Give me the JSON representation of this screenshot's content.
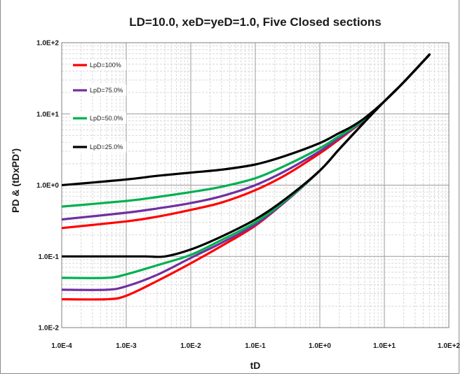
{
  "chart_data": {
    "type": "line",
    "title": "LD=10.0, xeD=yeD=1.0, Five Closed sections",
    "xlabel": "tD",
    "ylabel": "PD & (tDxPD')",
    "xscale": "log",
    "yscale": "log",
    "xlim": [
      0.0001,
      100
    ],
    "ylim": [
      0.01,
      100
    ],
    "x_ticks": [
      "1.0E-4",
      "1.0E-3",
      "1.0E-2",
      "1.0E-1",
      "1.0E+0",
      "1.0E+1",
      "1.0E+2"
    ],
    "y_ticks": [
      "1.0E-2",
      "1.0E-1",
      "1.0E+0",
      "1.0E+1",
      "1.0E+2"
    ],
    "grid": true,
    "legend_position": "top-left",
    "series": [
      {
        "name": "LpD=100%",
        "color": "#ff0000",
        "pressure": {
          "x": [
            0.0001,
            0.001,
            0.003,
            0.01,
            0.03,
            0.1,
            0.3,
            1,
            2,
            3,
            5,
            10,
            20,
            50
          ],
          "y": [
            0.25,
            0.31,
            0.36,
            0.45,
            0.57,
            0.85,
            1.4,
            2.8,
            4.4,
            5.8,
            8.3,
            15,
            28,
            68
          ]
        },
        "derivative": {
          "x": [
            0.0001,
            0.0005,
            0.001,
            0.003,
            0.01,
            0.03,
            0.1,
            0.3,
            1,
            2,
            5,
            10,
            20,
            50
          ],
          "y": [
            0.025,
            0.025,
            0.028,
            0.045,
            0.08,
            0.14,
            0.27,
            0.6,
            1.6,
            3.2,
            7.8,
            15,
            28,
            68
          ]
        }
      },
      {
        "name": "LpD=75.0%",
        "color": "#7030a0",
        "pressure": {
          "x": [
            0.0001,
            0.001,
            0.003,
            0.01,
            0.03,
            0.1,
            0.3,
            1,
            2,
            3,
            5,
            10,
            20,
            50
          ],
          "y": [
            0.33,
            0.41,
            0.47,
            0.56,
            0.7,
            1,
            1.6,
            3,
            4.6,
            5.9,
            8.4,
            15,
            28,
            68
          ]
        },
        "derivative": {
          "x": [
            0.0001,
            0.0005,
            0.001,
            0.003,
            0.01,
            0.03,
            0.1,
            0.3,
            1,
            2,
            5,
            10,
            20,
            50
          ],
          "y": [
            0.034,
            0.034,
            0.038,
            0.055,
            0.095,
            0.155,
            0.28,
            0.6,
            1.6,
            3.2,
            7.8,
            15,
            28,
            68
          ]
        }
      },
      {
        "name": "LpD=50.0%",
        "color": "#00b050",
        "pressure": {
          "x": [
            0.0001,
            0.001,
            0.003,
            0.01,
            0.03,
            0.1,
            0.3,
            1,
            2,
            3,
            5,
            10,
            20,
            50
          ],
          "y": [
            0.5,
            0.6,
            0.68,
            0.8,
            0.95,
            1.25,
            1.9,
            3.3,
            4.9,
            6.1,
            8.6,
            15,
            28,
            68
          ]
        },
        "derivative": {
          "x": [
            0.0001,
            0.0005,
            0.001,
            0.003,
            0.01,
            0.03,
            0.1,
            0.3,
            1,
            2,
            5,
            10,
            20,
            50
          ],
          "y": [
            0.05,
            0.05,
            0.056,
            0.075,
            0.105,
            0.17,
            0.3,
            0.62,
            1.6,
            3.2,
            7.8,
            15,
            28,
            68
          ]
        }
      },
      {
        "name": "LpD=25.0%",
        "color": "#000000",
        "pressure": {
          "x": [
            0.0001,
            0.001,
            0.003,
            0.01,
            0.03,
            0.1,
            0.3,
            1,
            2,
            3,
            5,
            10,
            20,
            50
          ],
          "y": [
            1,
            1.2,
            1.35,
            1.5,
            1.65,
            1.95,
            2.6,
            3.9,
            5.4,
            6.5,
            8.8,
            15,
            28,
            68
          ]
        },
        "derivative": {
          "x": [
            0.0001,
            0.001,
            0.002,
            0.004,
            0.01,
            0.03,
            0.1,
            0.3,
            1,
            2,
            5,
            10,
            20,
            50
          ],
          "y": [
            0.1,
            0.1,
            0.1,
            0.1,
            0.125,
            0.19,
            0.33,
            0.65,
            1.6,
            3.2,
            7.8,
            15,
            28,
            68
          ]
        }
      }
    ]
  }
}
